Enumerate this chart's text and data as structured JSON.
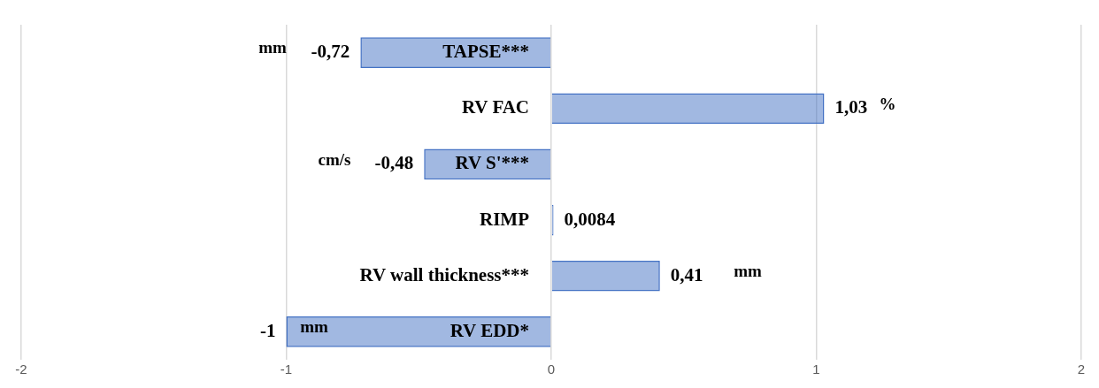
{
  "chart_data": {
    "type": "bar",
    "orientation": "horizontal",
    "categories": [
      "TAPSE***",
      "RV FAC",
      "RV S'***",
      "RIMP",
      "RV wall thickness***",
      "RV EDD*"
    ],
    "values": [
      -0.72,
      1.03,
      -0.48,
      0.0084,
      0.41,
      -1
    ],
    "value_labels": [
      "-0,72",
      "1,03",
      "-0,48",
      "0,0084",
      "0,41",
      "-1"
    ],
    "color": "#4472c4",
    "xlim": [
      -2,
      2
    ],
    "xticks": [
      -2,
      -1,
      0,
      1,
      2
    ],
    "grid": "x",
    "legend": false,
    "annotations": [
      "mm",
      "%",
      "cm/s",
      "mm",
      "mm"
    ]
  }
}
